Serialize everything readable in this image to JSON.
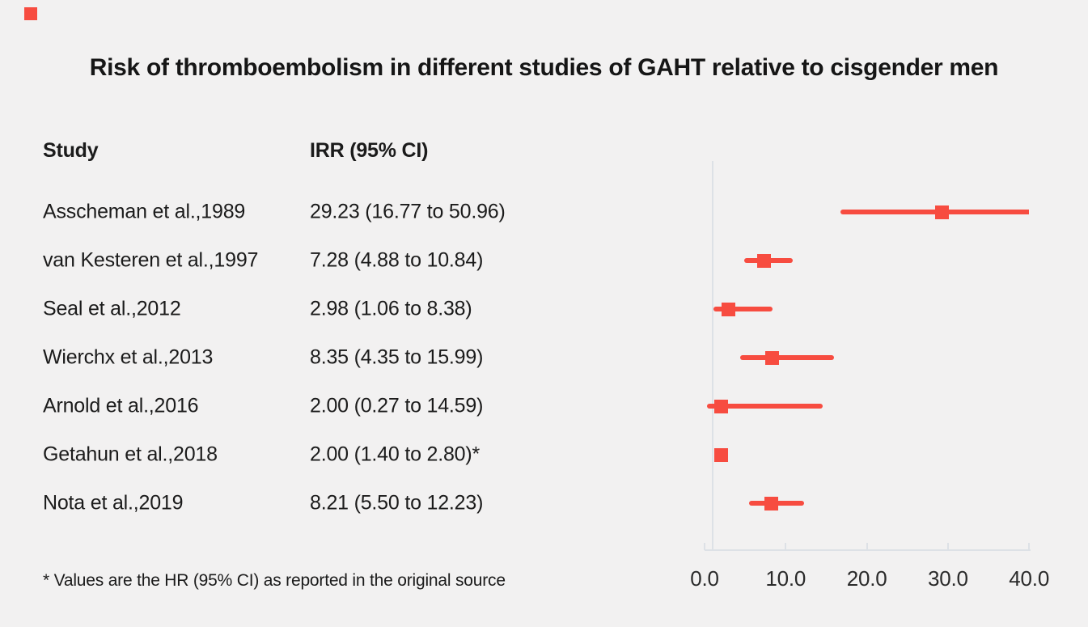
{
  "title": "Risk of thromboembolism in different studies of GAHT relative to cisgender men",
  "table": {
    "study_header": "Study",
    "irr_header": "IRR (95% CI)"
  },
  "footnote": "* Values are the HR (95% CI) as reported in the original source",
  "colors": {
    "background": "#f2f1f1",
    "marker_red": "#f74c40",
    "axis_gray": "#dde1e6",
    "text": "#1b1b1b"
  },
  "chart_data": {
    "type": "forest",
    "title": "Risk of thromboembolism in different studies of GAHT relative to cisgender men",
    "value_label": "IRR (95% CI)",
    "xlim": [
      0,
      40
    ],
    "tick_values": [
      0,
      10,
      20,
      30,
      40
    ],
    "tick_labels": [
      "0.0",
      "10.0",
      "20.0",
      "30.0",
      "40.0"
    ],
    "reference_line_x": 1.0,
    "grid": false,
    "rows": [
      {
        "study": "Asscheman et al.,1989",
        "irr_label": "29.23 (16.77 to 50.96)",
        "irr": 29.23,
        "lo": 16.77,
        "hi": 50.96
      },
      {
        "study": "van Kesteren et al.,1997",
        "irr_label": "7.28 (4.88 to 10.84)",
        "irr": 7.28,
        "lo": 4.88,
        "hi": 10.84
      },
      {
        "study": "Seal et al.,2012",
        "irr_label": "2.98 (1.06 to 8.38)",
        "irr": 2.98,
        "lo": 1.06,
        "hi": 8.38
      },
      {
        "study": "Wierchx et al.,2013",
        "irr_label": "8.35 (4.35 to 15.99)",
        "irr": 8.35,
        "lo": 4.35,
        "hi": 15.99
      },
      {
        "study": "Arnold et al.,2016",
        "irr_label": "2.00 (0.27 to 14.59)",
        "irr": 2.0,
        "lo": 0.27,
        "hi": 14.59
      },
      {
        "study": "Getahun et al.,2018",
        "irr_label": "2.00 (1.40 to 2.80)*",
        "irr": 2.0,
        "lo": 1.4,
        "hi": 2.8
      },
      {
        "study": "Nota et al.,2019",
        "irr_label": "8.21 (5.50 to 12.23)",
        "irr": 8.21,
        "lo": 5.5,
        "hi": 12.23
      }
    ]
  }
}
